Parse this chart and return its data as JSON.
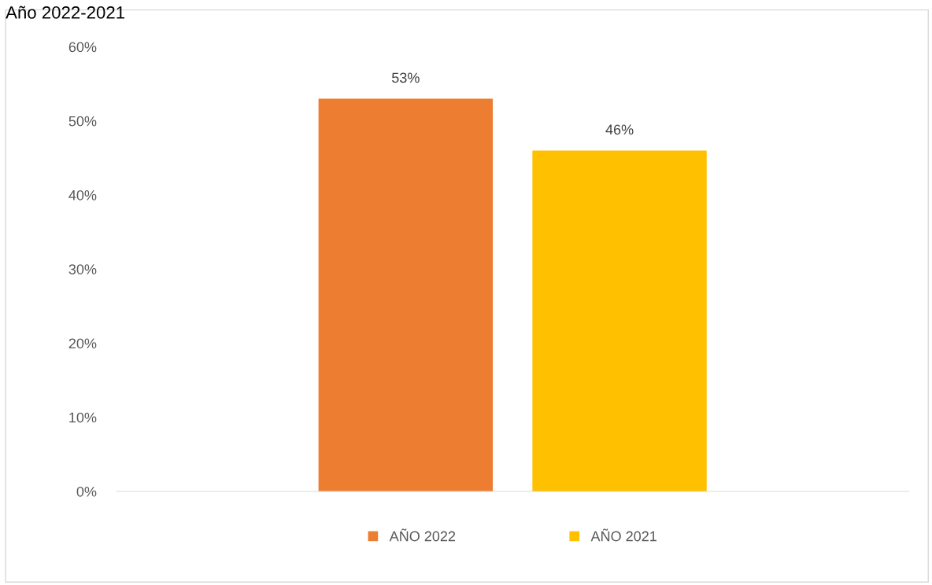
{
  "chart_data": {
    "type": "bar",
    "title": "Año 2022-2021",
    "categories": [
      null
    ],
    "series": [
      {
        "name": "AÑO 2022",
        "color": "#ed7d31",
        "values": [
          53
        ],
        "value_labels": [
          "53%"
        ]
      },
      {
        "name": "AÑO 2021",
        "color": "#ffc000",
        "values": [
          46
        ],
        "value_labels": [
          "46%"
        ]
      }
    ],
    "ylim": [
      0,
      60
    ],
    "yticks": [
      {
        "value": 0,
        "label": "0%"
      },
      {
        "value": 10,
        "label": "10%"
      },
      {
        "value": 20,
        "label": "20%"
      },
      {
        "value": 30,
        "label": "30%"
      },
      {
        "value": 40,
        "label": "40%"
      },
      {
        "value": 50,
        "label": "50%"
      },
      {
        "value": 60,
        "label": "60%"
      }
    ],
    "grid": false,
    "legend": "bottom"
  }
}
